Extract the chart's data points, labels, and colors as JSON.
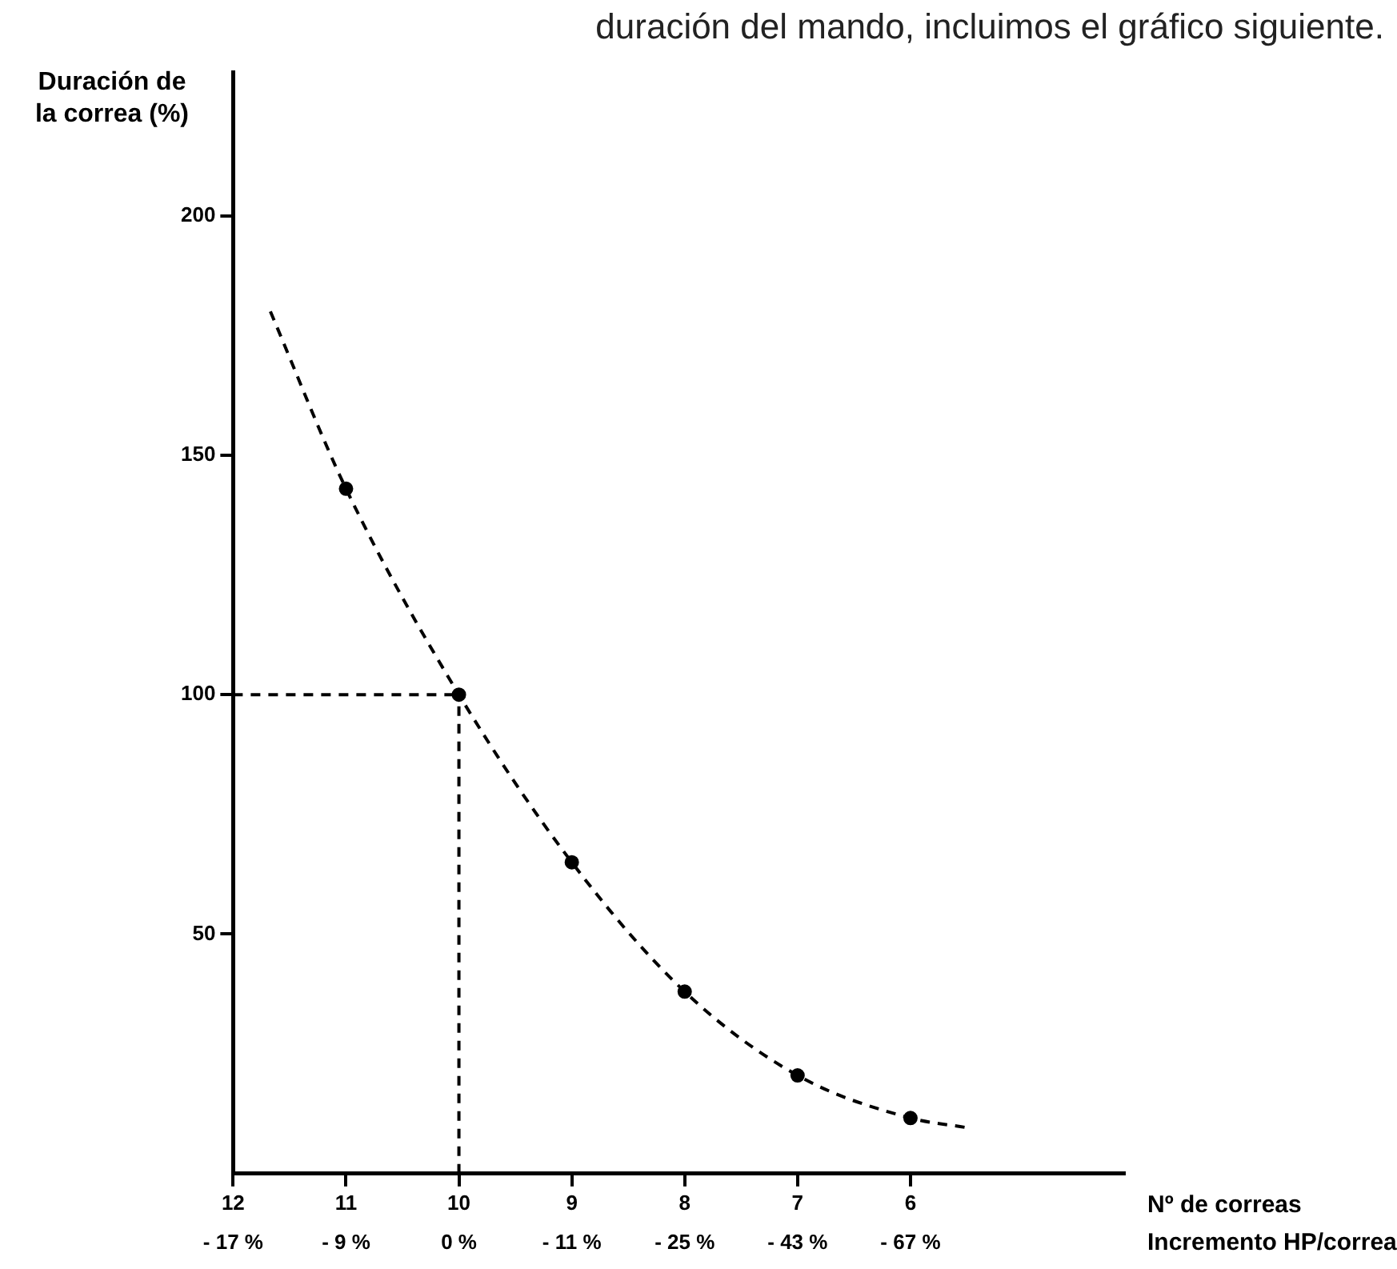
{
  "chart_data": {
    "type": "line",
    "title": "duración del mando, incluimos el gráfico siguiente.",
    "annotations": [
      "- 17 %",
      "- 9 %",
      "0 %",
      "- 11 %",
      "- 25 %",
      "- 43 %",
      "- 67 %",
      "Incremento HP/correa"
    ],
    "ylabel": "Duración de la correa (%)",
    "xlabel": "Nº de correas",
    "xlim": [
      12,
      4.1
    ],
    "xticks": [
      12,
      11,
      10,
      9,
      8,
      7,
      6
    ],
    "ylim": [
      0,
      230
    ],
    "yticks": [
      50,
      100,
      150,
      200
    ],
    "grid": false,
    "legend": false,
    "series": [
      {
        "type": "line",
        "color": "#000000",
        "line_style": "dashed",
        "marker": "none",
        "x": [
          11.67,
          11,
          10,
          9,
          8,
          7,
          6,
          5.5
        ],
        "values": [
          180,
          143,
          100,
          65,
          38,
          20.5,
          11.6,
          9.6
        ]
      },
      {
        "type": "scatter",
        "color": "#000000",
        "marker": "circle",
        "x": [
          11,
          10,
          9,
          8,
          7,
          6
        ],
        "values": [
          143,
          100,
          65,
          38,
          20.5,
          11.6
        ]
      }
    ],
    "ref_lines": [
      {
        "axis": "y",
        "value": 100,
        "line_style": "dashed",
        "color": "#000000"
      },
      {
        "axis": "x",
        "value": 10,
        "line_style": "dashed",
        "color": "#000000"
      }
    ]
  }
}
